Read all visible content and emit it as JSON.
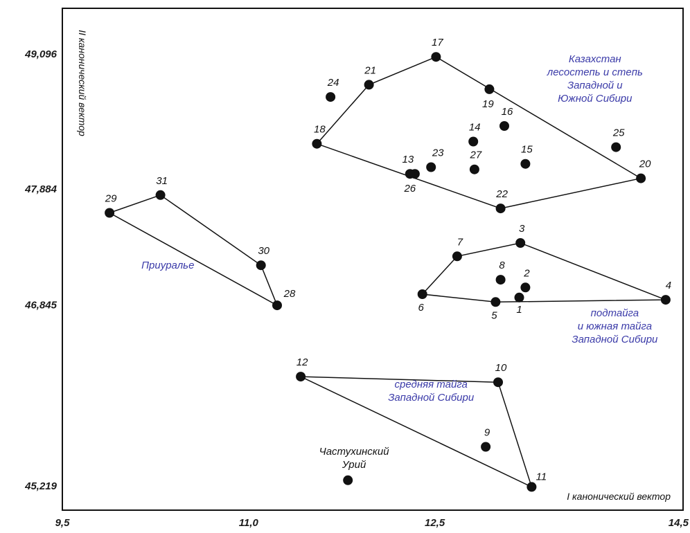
{
  "chart_data": {
    "type": "scatter",
    "title": "",
    "xlabel": "I канонический вектор",
    "ylabel": "II канонический вектор",
    "xlim": [
      9.5,
      14.5
    ],
    "ylim": [
      45.0,
      49.5
    ],
    "x_ticks": [
      "9,5",
      "11,0",
      "12,5",
      "14,5"
    ],
    "x_tick_values": [
      9.5,
      11.0,
      12.5,
      14.5
    ],
    "y_ticks": [
      "49,096",
      "47,884",
      "46,845",
      "45,219"
    ],
    "y_tick_values": [
      49.096,
      47.884,
      46.845,
      45.219
    ],
    "grid": false,
    "points": [
      {
        "label": "1",
        "x": 13.18,
        "y": 46.91
      },
      {
        "label": "2",
        "x": 13.23,
        "y": 47.0
      },
      {
        "label": "3",
        "x": 13.19,
        "y": 47.4
      },
      {
        "label": "4",
        "x": 14.36,
        "y": 46.89
      },
      {
        "label": "5",
        "x": 12.99,
        "y": 46.87
      },
      {
        "label": "6",
        "x": 12.4,
        "y": 46.94
      },
      {
        "label": "7",
        "x": 12.68,
        "y": 47.28
      },
      {
        "label": "8",
        "x": 13.03,
        "y": 47.07
      },
      {
        "label": "9",
        "x": 12.91,
        "y": 45.57
      },
      {
        "label": "10",
        "x": 13.01,
        "y": 46.15
      },
      {
        "label": "11",
        "x": 13.28,
        "y": 45.21
      },
      {
        "label": "12",
        "x": 11.42,
        "y": 46.2
      },
      {
        "label": "13",
        "x": 12.34,
        "y": 48.02
      },
      {
        "label": "14",
        "x": 12.81,
        "y": 48.31
      },
      {
        "label": "15",
        "x": 13.23,
        "y": 48.11
      },
      {
        "label": "16",
        "x": 13.06,
        "y": 48.45
      },
      {
        "label": "17",
        "x": 12.51,
        "y": 49.07
      },
      {
        "label": "18",
        "x": 11.55,
        "y": 48.29
      },
      {
        "label": "19",
        "x": 12.94,
        "y": 48.78
      },
      {
        "label": "20",
        "x": 14.16,
        "y": 47.98
      },
      {
        "label": "21",
        "x": 11.97,
        "y": 48.82
      },
      {
        "label": "22",
        "x": 13.03,
        "y": 47.71
      },
      {
        "label": "23",
        "x": 12.47,
        "y": 48.08
      },
      {
        "label": "24",
        "x": 11.66,
        "y": 48.71
      },
      {
        "label": "25",
        "x": 13.96,
        "y": 48.26
      },
      {
        "label": "26",
        "x": 12.3,
        "y": 48.02
      },
      {
        "label": "27",
        "x": 12.82,
        "y": 48.06
      },
      {
        "label": "28",
        "x": 11.23,
        "y": 46.84
      },
      {
        "label": "29",
        "x": 9.88,
        "y": 47.67
      },
      {
        "label": "30",
        "x": 11.1,
        "y": 47.2
      },
      {
        "label": "31",
        "x": 10.29,
        "y": 47.83
      },
      {
        "label": "",
        "x": 11.8,
        "y": 45.27
      }
    ],
    "polygons": [
      {
        "vertices": [
          "18",
          "21",
          "17",
          "20",
          "22"
        ]
      },
      {
        "vertices": [
          "6",
          "7",
          "3",
          "4",
          "5"
        ]
      },
      {
        "vertices": [
          "29",
          "31",
          "30",
          "28"
        ]
      },
      {
        "vertices": [
          "12",
          "10",
          "11"
        ]
      }
    ],
    "annotations": [
      {
        "lines": [
          "Казахстан",
          "лесостепь и степь",
          "Западной и",
          "Южной Сибири"
        ],
        "x": 13.79,
        "y": 49.02,
        "color": "#3a3aa8"
      },
      {
        "lines": [
          "Приуралье"
        ],
        "x": 10.35,
        "y": 47.17,
        "color": "#3a3aa8"
      },
      {
        "lines": [
          "подтайга",
          "и южная тайга",
          "Западной Сибири"
        ],
        "x": 13.95,
        "y": 46.74,
        "color": "#3a3aa8"
      },
      {
        "lines": [
          "средняя тайга",
          "Западной Сибири"
        ],
        "x": 12.47,
        "y": 46.1,
        "color": "#3a3aa8"
      },
      {
        "lines": [
          "Частухинский",
          "Урий"
        ],
        "x": 11.85,
        "y": 45.5,
        "color": "#111111"
      }
    ]
  }
}
